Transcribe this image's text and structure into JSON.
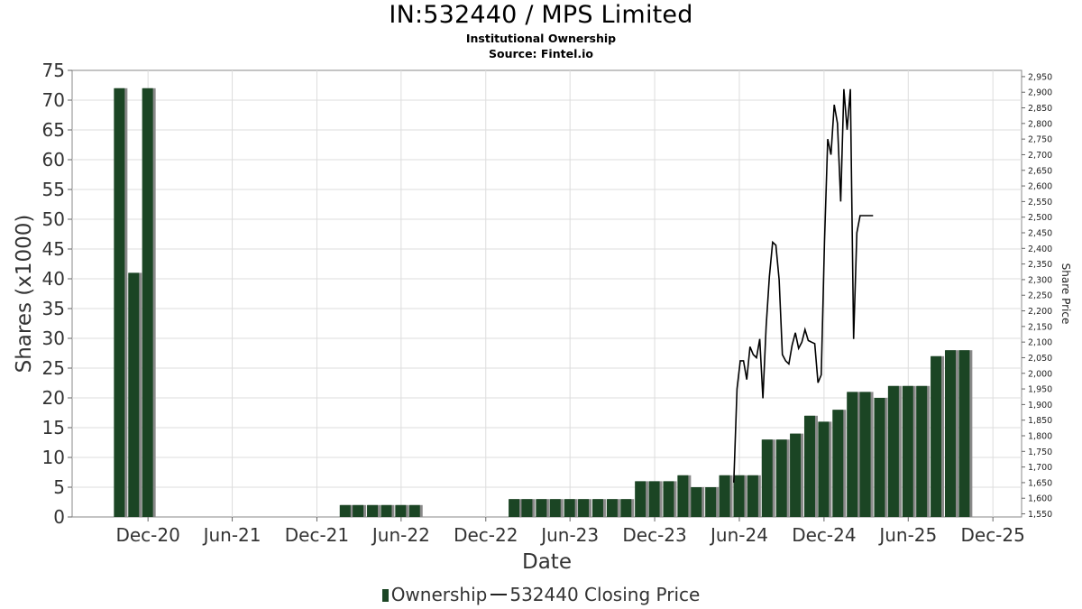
{
  "title": "IN:532440 / MPS Limited",
  "subtitle": "Institutional Ownership",
  "source": "Source: Fintel.io",
  "colors": {
    "bar": "#1b4524",
    "bar_shadow": "#8a8a8a",
    "line": "#000000",
    "grid": "#dddddd"
  },
  "chart_data": {
    "type": "bar",
    "xlabel": "Date",
    "ylabel": "Shares (x1000)",
    "y2label": "Share Price",
    "ylim": [
      0,
      75
    ],
    "y2lim": [
      1540,
      2970
    ],
    "grid": true,
    "legend_position": "bottom",
    "x_tick_labels": [
      "Dec-20",
      "Jun-21",
      "Dec-21",
      "Jun-22",
      "Dec-22",
      "Jun-23",
      "Dec-23",
      "Jun-24",
      "Dec-24",
      "Jun-25",
      "Dec-25"
    ],
    "y_tick_labels": [
      "0",
      "5",
      "10",
      "15",
      "20",
      "25",
      "30",
      "35",
      "40",
      "45",
      "50",
      "55",
      "60",
      "65",
      "70",
      "75"
    ],
    "y2_tick_labels": [
      "1,550",
      "1,600",
      "1,650",
      "1,700",
      "1,750",
      "1,800",
      "1,850",
      "1,900",
      "1,950",
      "2,000",
      "2,050",
      "2,100",
      "2,150",
      "2,200",
      "2,250",
      "2,300",
      "2,350",
      "2,400",
      "2,450",
      "2,500",
      "2,550",
      "2,600",
      "2,650",
      "2,700",
      "2,750",
      "2,800",
      "2,850",
      "2,900",
      "2,950"
    ],
    "series": [
      {
        "name": "Ownership",
        "type": "bar",
        "x": [
          "2020-09-30",
          "2020-10-31",
          "2020-11-30",
          "2022-01-31",
          "2022-02-28",
          "2022-03-31",
          "2022-04-30",
          "2022-05-31",
          "2022-06-30",
          "2023-01-31",
          "2023-02-28",
          "2023-03-31",
          "2023-04-30",
          "2023-05-31",
          "2023-06-30",
          "2023-07-31",
          "2023-08-31",
          "2023-09-30",
          "2023-10-31",
          "2023-11-30",
          "2023-12-31",
          "2024-01-31",
          "2024-02-29",
          "2024-03-31",
          "2024-04-30",
          "2024-05-31",
          "2024-06-30",
          "2024-07-31",
          "2024-08-31",
          "2024-09-30",
          "2024-10-31",
          "2024-11-30",
          "2024-12-31",
          "2025-01-31",
          "2025-02-28",
          "2025-03-31",
          "2025-04-30",
          "2025-05-31",
          "2025-06-30",
          "2025-07-31",
          "2025-08-31",
          "2025-09-30"
        ],
        "values": [
          72,
          41,
          72,
          2,
          2,
          2,
          2,
          2,
          2,
          3,
          3,
          3,
          3,
          3,
          3,
          3,
          3,
          3,
          6,
          6,
          6,
          7,
          5,
          5,
          7,
          7,
          7,
          13,
          13,
          14,
          17,
          16,
          18,
          21,
          21,
          20,
          22,
          22,
          22,
          27,
          28,
          28
        ]
      },
      {
        "name": "532440 Closing Price",
        "type": "line",
        "x": [
          "2024-05-20",
          "2024-05-27",
          "2024-06-03",
          "2024-06-10",
          "2024-06-17",
          "2024-06-24",
          "2024-07-01",
          "2024-07-08",
          "2024-07-15",
          "2024-07-22",
          "2024-07-29",
          "2024-08-05",
          "2024-08-12",
          "2024-08-19",
          "2024-08-26",
          "2024-09-02",
          "2024-09-09",
          "2024-09-16",
          "2024-09-23",
          "2024-09-30",
          "2024-10-07",
          "2024-10-14",
          "2024-10-21",
          "2024-10-28",
          "2024-11-04",
          "2024-11-11",
          "2024-11-18",
          "2024-11-25",
          "2024-12-02",
          "2024-12-09",
          "2024-12-16",
          "2024-12-23",
          "2024-12-30",
          "2025-01-06",
          "2025-01-13",
          "2025-01-20",
          "2025-01-27",
          "2025-02-03",
          "2025-02-10",
          "2025-02-17",
          "2025-02-24",
          "2025-03-03",
          "2025-03-10",
          "2025-03-17"
        ],
        "values": [
          1650,
          1950,
          2040,
          2040,
          1980,
          2085,
          2060,
          2050,
          2110,
          1920,
          2150,
          2310,
          2420,
          2410,
          2300,
          2060,
          2040,
          2030,
          2090,
          2130,
          2080,
          2100,
          2140,
          2105,
          2100,
          2095,
          1970,
          1995,
          2420,
          2750,
          2700,
          2860,
          2800,
          2550,
          2910,
          2780,
          2910,
          2110,
          2450,
          2505,
          2505,
          2505,
          2505,
          2505
        ]
      }
    ]
  }
}
